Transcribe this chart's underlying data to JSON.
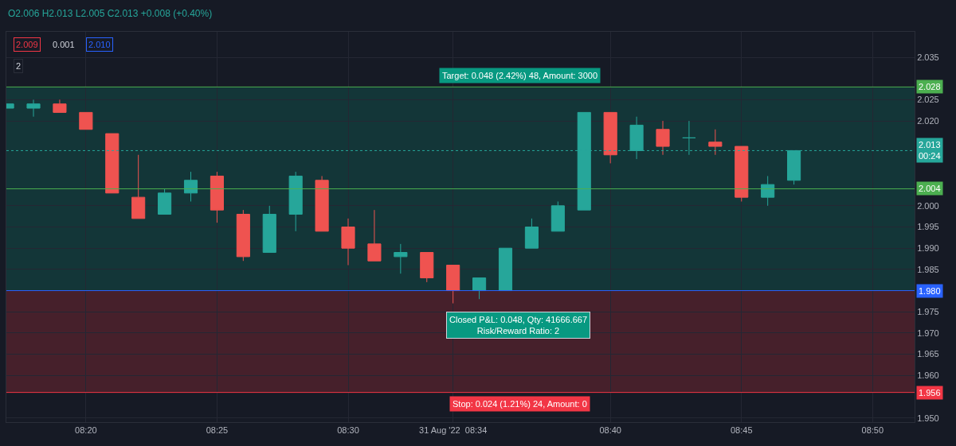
{
  "chart_data": {
    "type": "candlestick",
    "x": [
      "2022-08-31T08:17",
      "2022-08-31T08:18",
      "2022-08-31T08:19",
      "2022-08-31T08:20",
      "2022-08-31T08:21",
      "2022-08-31T08:22",
      "2022-08-31T08:23",
      "2022-08-31T08:24",
      "2022-08-31T08:25",
      "2022-08-31T08:26",
      "2022-08-31T08:27",
      "2022-08-31T08:28",
      "2022-08-31T08:29",
      "2022-08-31T08:30",
      "2022-08-31T08:31",
      "2022-08-31T08:32",
      "2022-08-31T08:33",
      "2022-08-31T08:34",
      "2022-08-31T08:35",
      "2022-08-31T08:36",
      "2022-08-31T08:37",
      "2022-08-31T08:38",
      "2022-08-31T08:39",
      "2022-08-31T08:40",
      "2022-08-31T08:41",
      "2022-08-31T08:42",
      "2022-08-31T08:43",
      "2022-08-31T08:44",
      "2022-08-31T08:45",
      "2022-08-31T08:46",
      "2022-08-31T08:47"
    ],
    "ohlc": [
      [
        2.023,
        2.024,
        2.023,
        2.024
      ],
      [
        2.023,
        2.025,
        2.021,
        2.024
      ],
      [
        2.024,
        2.025,
        2.022,
        2.022
      ],
      [
        2.022,
        2.022,
        2.018,
        2.018
      ],
      [
        2.017,
        2.017,
        2.003,
        2.003
      ],
      [
        2.002,
        2.012,
        1.997,
        1.997
      ],
      [
        1.998,
        2.004,
        1.998,
        2.003
      ],
      [
        2.003,
        2.008,
        2.001,
        2.006
      ],
      [
        2.007,
        2.008,
        1.996,
        1.999
      ],
      [
        1.998,
        1.999,
        1.987,
        1.988
      ],
      [
        1.989,
        2.0,
        1.989,
        1.998
      ],
      [
        1.998,
        2.008,
        1.994,
        2.007
      ],
      [
        2.006,
        2.007,
        1.994,
        1.994
      ],
      [
        1.995,
        1.997,
        1.986,
        1.99
      ],
      [
        1.991,
        1.999,
        1.987,
        1.987
      ],
      [
        1.988,
        1.991,
        1.984,
        1.989
      ],
      [
        1.989,
        1.989,
        1.982,
        1.983
      ],
      [
        1.986,
        1.986,
        1.977,
        1.98
      ],
      [
        1.98,
        1.983,
        1.978,
        1.983
      ],
      [
        1.98,
        1.99,
        1.98,
        1.99
      ],
      [
        1.99,
        1.997,
        1.99,
        1.995
      ],
      [
        1.994,
        2.001,
        1.994,
        2.0
      ],
      [
        1.999,
        2.022,
        1.999,
        2.022
      ],
      [
        2.022,
        2.022,
        2.01,
        2.012
      ],
      [
        2.013,
        2.021,
        2.011,
        2.019
      ],
      [
        2.018,
        2.02,
        2.012,
        2.014
      ],
      [
        2.016,
        2.02,
        2.012,
        2.016
      ],
      [
        2.015,
        2.018,
        2.012,
        2.014
      ],
      [
        2.014,
        2.014,
        2.001,
        2.002
      ],
      [
        2.002,
        2.007,
        2.0,
        2.005
      ],
      [
        2.006,
        2.013,
        2.005,
        2.013
      ]
    ],
    "colors": [
      "#26a69a",
      "#26a69a",
      "#ef5350",
      "#ef5350",
      "#ef5350",
      "#ef5350",
      "#26a69a",
      "#26a69a",
      "#ef5350",
      "#ef5350",
      "#26a69a",
      "#26a69a",
      "#ef5350",
      "#ef5350",
      "#ef5350",
      "#26a69a",
      "#ef5350",
      "#ef5350",
      "#26a69a",
      "#26a69a",
      "#26a69a",
      "#26a69a",
      "#26a69a",
      "#ef5350",
      "#26a69a",
      "#ef5350",
      "#26a69a",
      "#ef5350",
      "#ef5350",
      "#26a69a",
      "#26a69a"
    ],
    "xlim": [
      "2022-08-31T08:16:58",
      "2022-08-31T08:51:36"
    ],
    "xticks": [
      {
        "value": "2022-08-31T08:20",
        "label": "08:20"
      },
      {
        "value": "2022-08-31T08:25",
        "label": "08:25"
      },
      {
        "value": "2022-08-31T08:30",
        "label": "08:30"
      },
      {
        "value": "2022-08-31T08:34",
        "label": "31 Aug '22  08:34"
      },
      {
        "value": "2022-08-31T08:40",
        "label": "08:40"
      },
      {
        "value": "2022-08-31T08:45",
        "label": "08:45"
      },
      {
        "value": "2022-08-31T08:50",
        "label": "08:50"
      }
    ],
    "ylim": [
      1.949,
      2.041
    ],
    "yticks": [
      {
        "value": 1.95,
        "label": "1.950"
      },
      {
        "value": 1.96,
        "label": "1.960"
      },
      {
        "value": 1.965,
        "label": "1.965"
      },
      {
        "value": 1.97,
        "label": "1.970"
      },
      {
        "value": 1.975,
        "label": "1.975"
      },
      {
        "value": 1.985,
        "label": "1.985"
      },
      {
        "value": 1.99,
        "label": "1.990"
      },
      {
        "value": 1.995,
        "label": "1.995"
      },
      {
        "value": 2.0,
        "label": "2.000"
      },
      {
        "value": 2.02,
        "label": "2.020"
      },
      {
        "value": 2.025,
        "label": "2.025"
      },
      {
        "value": 2.035,
        "label": "2.035"
      }
    ],
    "grid": true,
    "ref_lines": [
      {
        "axis": "y",
        "value": 2.028,
        "label": "2.028",
        "color": "#4caf50",
        "line_style": "solid"
      },
      {
        "axis": "y",
        "value": 2.013,
        "label": "2.013\n00:24",
        "color": "#26a69a",
        "line_style": "dotted"
      },
      {
        "axis": "y",
        "value": 2.004,
        "label": "2.004",
        "color": "#4caf50",
        "line_style": "solid"
      },
      {
        "axis": "y",
        "value": 1.98,
        "label": "1.980",
        "color": "#2962ff",
        "line_style": "solid"
      },
      {
        "axis": "y",
        "value": 1.956,
        "label": "1.956",
        "color": "#f23645",
        "line_style": "solid"
      }
    ],
    "bands": [
      {
        "axis": "y",
        "from": 1.98,
        "to": 2.028,
        "label": "Target: 0.048 (2.42%) 48, Amount: 3000",
        "color": "#089981"
      },
      {
        "axis": "y",
        "from": 1.956,
        "to": 1.98,
        "label": "Stop: 0.024 (1.21%) 24, Amount: 0",
        "color": "#f23645"
      }
    ],
    "annotations": [
      "O2.006 H2.013 L2.005 C2.013 +0.008 (+0.40%)",
      "2.009",
      "0.001",
      "2.010",
      "2",
      {
        "text": "Closed P&L: 0.048, Qty: 41666.667\nRisk/Reward Ratio: 2",
        "x": "2022-08-31T08:36:30",
        "y": 1.98
      }
    ]
  }
}
